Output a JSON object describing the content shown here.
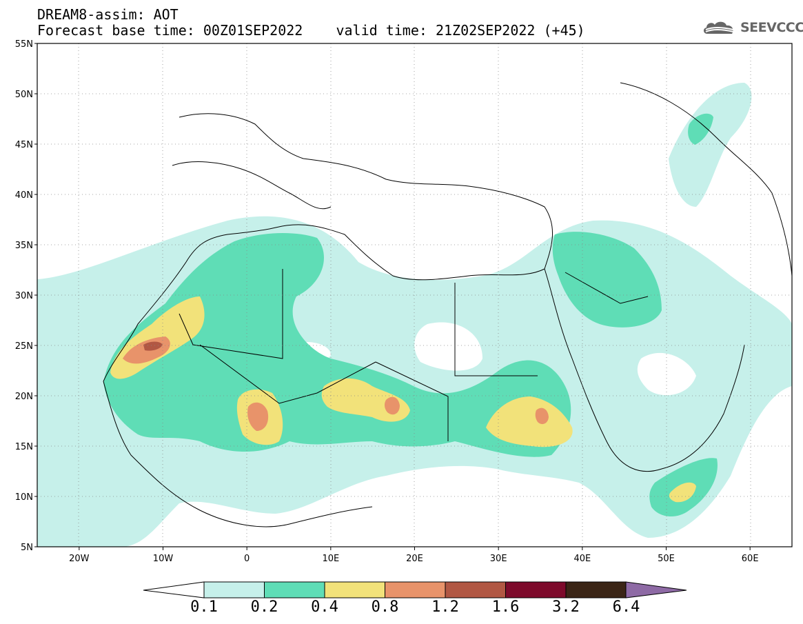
{
  "title": {
    "line1": "DREAM8-assim: AOT",
    "line2": "Forecast base time: 00Z01SEP2022    valid time: 21Z02SEP2022 (+45)"
  },
  "logo": {
    "text": "SEEVCCC",
    "icon": "cloud-icon"
  },
  "map": {
    "lon_labels": [
      "20W",
      "10W",
      "0",
      "10E",
      "20E",
      "30E",
      "40E",
      "50E",
      "60E"
    ],
    "lat_labels": [
      "55N",
      "50N",
      "45N",
      "40N",
      "35N",
      "30N",
      "25N",
      "20N",
      "15N",
      "10N",
      "5N"
    ],
    "lon_range": [
      -25,
      65
    ],
    "lat_range": [
      5,
      55
    ],
    "gridlines": "dotted"
  },
  "colorbar": {
    "levels": [
      "0.1",
      "0.2",
      "0.4",
      "0.8",
      "1.2",
      "1.6",
      "3.2",
      "6.4"
    ],
    "colors": [
      "#c6f0ea",
      "#5fddb6",
      "#f2e27a",
      "#e8936a",
      "#b15743",
      "#7d0a2b",
      "#3b2516",
      "#8e6aa5"
    ]
  }
}
